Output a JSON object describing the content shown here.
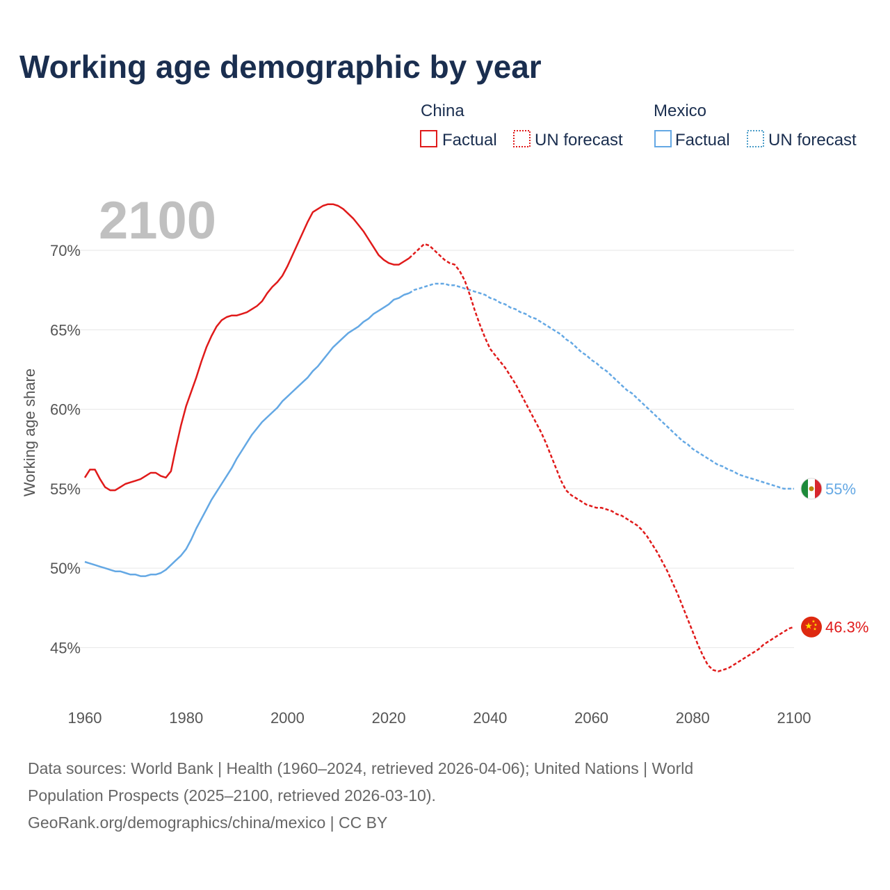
{
  "chart_data": {
    "type": "line",
    "title": "Working age demographic by year",
    "ylabel": "Working age share",
    "xlabel": "",
    "current_year_label": "2100",
    "xlim": [
      1960,
      2100
    ],
    "ylim": [
      42.0,
      73.5
    ],
    "x_ticks": [
      1960,
      1980,
      2000,
      2020,
      2040,
      2060,
      2080,
      2100
    ],
    "x_tick_labels": [
      "1960",
      "1980",
      "2000",
      "2020",
      "2040",
      "2060",
      "2080",
      "2100"
    ],
    "y_ticks": [
      45,
      50,
      55,
      60,
      65,
      70
    ],
    "y_tick_labels": [
      "45%",
      "50%",
      "55%",
      "60%",
      "65%",
      "70%"
    ],
    "legend": {
      "groups": [
        {
          "name": "China",
          "color": "#e01a1a",
          "items": [
            "Factual",
            "UN forecast"
          ]
        },
        {
          "name": "Mexico",
          "color": "#64a8e4",
          "items": [
            "Factual",
            "UN forecast"
          ]
        }
      ]
    },
    "series": [
      {
        "name": "China",
        "color": "#e01a1a",
        "end_label": "46.3%",
        "factual": {
          "x": [
            1960,
            1961,
            1962,
            1963,
            1964,
            1965,
            1966,
            1967,
            1968,
            1969,
            1970,
            1971,
            1972,
            1973,
            1974,
            1975,
            1976,
            1977,
            1978,
            1979,
            1980,
            1981,
            1982,
            1983,
            1984,
            1985,
            1986,
            1987,
            1988,
            1989,
            1990,
            1991,
            1992,
            1993,
            1994,
            1995,
            1996,
            1997,
            1998,
            1999,
            2000,
            2001,
            2002,
            2003,
            2004,
            2005,
            2006,
            2007,
            2008,
            2009,
            2010,
            2011,
            2012,
            2013,
            2014,
            2015,
            2016,
            2017,
            2018,
            2019,
            2020,
            2021,
            2022,
            2023,
            2024
          ],
          "values": [
            55.7,
            56.2,
            56.2,
            55.6,
            55.1,
            54.9,
            54.9,
            55.1,
            55.3,
            55.4,
            55.5,
            55.6,
            55.8,
            56.0,
            56.0,
            55.8,
            55.7,
            56.1,
            57.6,
            59.0,
            60.2,
            61.1,
            62.0,
            63.0,
            63.9,
            64.6,
            65.2,
            65.6,
            65.8,
            65.9,
            65.9,
            66.0,
            66.1,
            66.3,
            66.5,
            66.8,
            67.3,
            67.7,
            68.0,
            68.4,
            69.0,
            69.7,
            70.4,
            71.1,
            71.8,
            72.4,
            72.6,
            72.8,
            72.9,
            72.9,
            72.8,
            72.6,
            72.3,
            72.0,
            71.6,
            71.2,
            70.7,
            70.2,
            69.7,
            69.4,
            69.2,
            69.1,
            69.1,
            69.3,
            69.5
          ]
        },
        "forecast": {
          "x": [
            2024,
            2025,
            2026,
            2027,
            2028,
            2029,
            2030,
            2031,
            2032,
            2033,
            2034,
            2035,
            2036,
            2037,
            2038,
            2039,
            2040,
            2041,
            2042,
            2043,
            2044,
            2045,
            2046,
            2047,
            2048,
            2049,
            2050,
            2051,
            2052,
            2053,
            2054,
            2055,
            2056,
            2057,
            2058,
            2059,
            2060,
            2061,
            2062,
            2063,
            2064,
            2065,
            2066,
            2067,
            2068,
            2069,
            2070,
            2071,
            2072,
            2073,
            2074,
            2075,
            2076,
            2077,
            2078,
            2079,
            2080,
            2081,
            2082,
            2083,
            2084,
            2085,
            2086,
            2087,
            2088,
            2089,
            2090,
            2091,
            2092,
            2093,
            2094,
            2095,
            2096,
            2097,
            2098,
            2099,
            2100
          ],
          "values": [
            69.5,
            69.8,
            70.1,
            70.4,
            70.3,
            70.0,
            69.7,
            69.4,
            69.2,
            69.1,
            68.7,
            68.1,
            67.2,
            66.2,
            65.3,
            64.5,
            63.8,
            63.4,
            63.0,
            62.6,
            62.1,
            61.6,
            61.0,
            60.4,
            59.8,
            59.2,
            58.6,
            57.9,
            57.1,
            56.3,
            55.5,
            54.9,
            54.6,
            54.4,
            54.2,
            54.0,
            53.9,
            53.8,
            53.8,
            53.7,
            53.6,
            53.4,
            53.3,
            53.1,
            52.9,
            52.7,
            52.4,
            52.0,
            51.5,
            51.0,
            50.4,
            49.8,
            49.1,
            48.4,
            47.6,
            46.8,
            46.0,
            45.2,
            44.5,
            43.9,
            43.6,
            43.5,
            43.6,
            43.7,
            43.9,
            44.1,
            44.3,
            44.5,
            44.7,
            44.9,
            45.2,
            45.4,
            45.6,
            45.8,
            46.0,
            46.2,
            46.3
          ]
        }
      },
      {
        "name": "Mexico",
        "color": "#64a8e4",
        "end_label": "55%",
        "factual": {
          "x": [
            1960,
            1961,
            1962,
            1963,
            1964,
            1965,
            1966,
            1967,
            1968,
            1969,
            1970,
            1971,
            1972,
            1973,
            1974,
            1975,
            1976,
            1977,
            1978,
            1979,
            1980,
            1981,
            1982,
            1983,
            1984,
            1985,
            1986,
            1987,
            1988,
            1989,
            1990,
            1991,
            1992,
            1993,
            1994,
            1995,
            1996,
            1997,
            1998,
            1999,
            2000,
            2001,
            2002,
            2003,
            2004,
            2005,
            2006,
            2007,
            2008,
            2009,
            2010,
            2011,
            2012,
            2013,
            2014,
            2015,
            2016,
            2017,
            2018,
            2019,
            2020,
            2021,
            2022,
            2023,
            2024
          ],
          "values": [
            50.4,
            50.3,
            50.2,
            50.1,
            50.0,
            49.9,
            49.8,
            49.8,
            49.7,
            49.6,
            49.6,
            49.5,
            49.5,
            49.6,
            49.6,
            49.7,
            49.9,
            50.2,
            50.5,
            50.8,
            51.2,
            51.8,
            52.5,
            53.1,
            53.7,
            54.3,
            54.8,
            55.3,
            55.8,
            56.3,
            56.9,
            57.4,
            57.9,
            58.4,
            58.8,
            59.2,
            59.5,
            59.8,
            60.1,
            60.5,
            60.8,
            61.1,
            61.4,
            61.7,
            62.0,
            62.4,
            62.7,
            63.1,
            63.5,
            63.9,
            64.2,
            64.5,
            64.8,
            65.0,
            65.2,
            65.5,
            65.7,
            66.0,
            66.2,
            66.4,
            66.6,
            66.9,
            67.0,
            67.2,
            67.3
          ]
        },
        "forecast": {
          "x": [
            2024,
            2025,
            2026,
            2027,
            2028,
            2029,
            2030,
            2031,
            2032,
            2033,
            2034,
            2035,
            2036,
            2037,
            2038,
            2039,
            2040,
            2041,
            2042,
            2043,
            2044,
            2045,
            2046,
            2047,
            2048,
            2049,
            2050,
            2051,
            2052,
            2053,
            2054,
            2055,
            2056,
            2057,
            2058,
            2059,
            2060,
            2061,
            2062,
            2063,
            2064,
            2065,
            2066,
            2067,
            2068,
            2069,
            2070,
            2071,
            2072,
            2073,
            2074,
            2075,
            2076,
            2077,
            2078,
            2079,
            2080,
            2081,
            2082,
            2083,
            2084,
            2085,
            2086,
            2087,
            2088,
            2089,
            2090,
            2091,
            2092,
            2093,
            2094,
            2095,
            2096,
            2097,
            2098,
            2099,
            2100
          ],
          "values": [
            67.3,
            67.5,
            67.6,
            67.7,
            67.8,
            67.9,
            67.9,
            67.9,
            67.8,
            67.8,
            67.7,
            67.6,
            67.5,
            67.4,
            67.3,
            67.2,
            67.0,
            66.9,
            66.7,
            66.6,
            66.4,
            66.3,
            66.1,
            66.0,
            65.8,
            65.7,
            65.5,
            65.3,
            65.1,
            64.9,
            64.7,
            64.4,
            64.2,
            63.9,
            63.6,
            63.4,
            63.1,
            62.9,
            62.6,
            62.4,
            62.1,
            61.8,
            61.5,
            61.2,
            61.0,
            60.7,
            60.4,
            60.1,
            59.8,
            59.5,
            59.2,
            58.9,
            58.6,
            58.3,
            58.0,
            57.8,
            57.5,
            57.3,
            57.1,
            56.9,
            56.7,
            56.5,
            56.4,
            56.2,
            56.1,
            55.9,
            55.8,
            55.7,
            55.6,
            55.5,
            55.4,
            55.3,
            55.2,
            55.1,
            55.0,
            55.0,
            55.0
          ]
        }
      }
    ],
    "source_lines": [
      "Data sources: World Bank | Health (1960–2024, retrieved 2026-04-06); United Nations | World",
      "Population Prospects (2025–2100, retrieved 2026-03-10).",
      "GeoRank.org/demographics/china/mexico | CC BY"
    ]
  }
}
